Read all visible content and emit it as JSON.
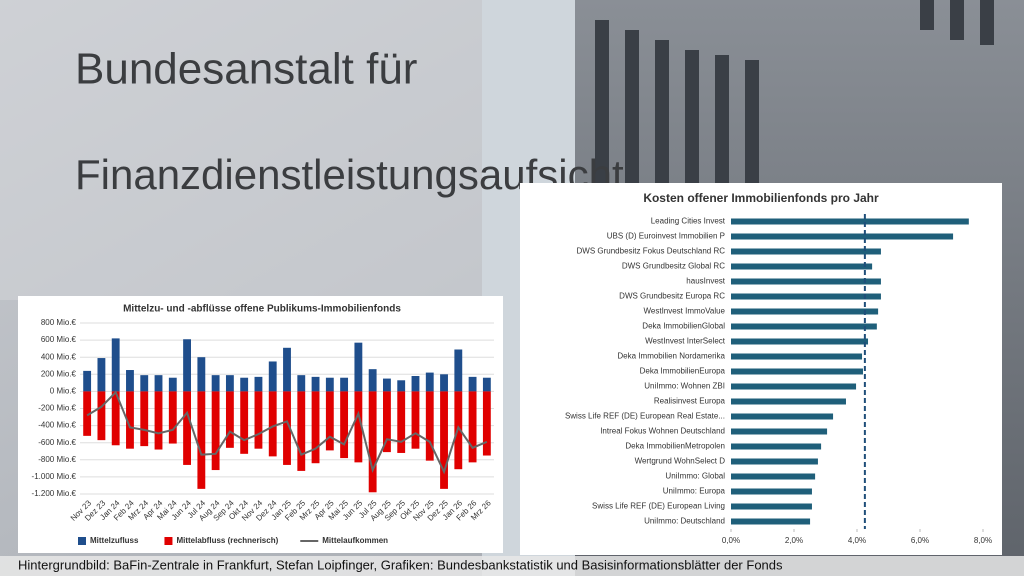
{
  "background": {
    "sign_lines": [
      "Bundesanstalt für",
      "Finanzdienstleistungsaufsicht"
    ]
  },
  "caption": "Hintergrundbild: BaFin-Zentrale in Frankfurt, Stefan Loipfinger, Grafiken: Bundesbankstatistik und Basisinformationsblätter der Fonds",
  "chart_data": [
    {
      "type": "combo",
      "title": "Mittelzu- und -abflüsse offene Publikums-Immobilienfonds",
      "categories": [
        "Nov 23",
        "Dez 23",
        "Jan 24",
        "Feb 24",
        "Mrz 24",
        "Apr 24",
        "Mai 24",
        "Jun 24",
        "Jul 24",
        "Aug 24",
        "Sep 24",
        "Okt 24",
        "Nov 24",
        "Dez 24",
        "Jan 25",
        "Feb 25",
        "Mrz 25",
        "Apr 25",
        "Mai 25",
        "Jun 25",
        "Jul 25",
        "Aug 25",
        "Sep 25",
        "Okt 25",
        "Nov 25",
        "Dez 25",
        "Jan 26",
        "Feb 26",
        "Mrz 26"
      ],
      "series": [
        {
          "name": "Mittelzufluss",
          "type": "bar",
          "color": "#1f4e8c",
          "values": [
            240,
            390,
            620,
            250,
            190,
            190,
            160,
            610,
            400,
            190,
            190,
            160,
            170,
            350,
            510,
            190,
            170,
            160,
            160,
            570,
            260,
            150,
            130,
            180,
            220,
            200,
            490,
            170,
            160
          ]
        },
        {
          "name": "Mittelabfluss (rechnerisch)",
          "type": "bar",
          "color": "#e00000",
          "values": [
            -520,
            -570,
            -630,
            -670,
            -640,
            -680,
            -610,
            -860,
            -1140,
            -920,
            -660,
            -730,
            -670,
            -760,
            -860,
            -930,
            -840,
            -690,
            -780,
            -830,
            -1180,
            -710,
            -720,
            -670,
            -810,
            -1140,
            -910,
            -830,
            -750
          ]
        },
        {
          "name": "Mittelaufkommen",
          "type": "line",
          "color": "#666666",
          "values": [
            -280,
            -180,
            -10,
            -420,
            -450,
            -490,
            -450,
            -250,
            -740,
            -730,
            -470,
            -570,
            -500,
            -410,
            -350,
            -740,
            -670,
            -530,
            -620,
            -260,
            -920,
            -560,
            -590,
            -490,
            -590,
            -940,
            -420,
            -660,
            -590
          ]
        }
      ],
      "ylim": [
        -1200,
        800
      ],
      "yticks": [
        {
          "value": 800,
          "label": "800 Mio.€"
        },
        {
          "value": 600,
          "label": "600 Mio.€"
        },
        {
          "value": 400,
          "label": "400 Mio.€"
        },
        {
          "value": 200,
          "label": "200 Mio.€"
        },
        {
          "value": 0,
          "label": "0 Mio.€"
        },
        {
          "value": -200,
          "label": "-200 Mio.€"
        },
        {
          "value": -400,
          "label": "-400 Mio.€"
        },
        {
          "value": -600,
          "label": "-600 Mio.€"
        },
        {
          "value": -800,
          "label": "-800 Mio.€"
        },
        {
          "value": -1000,
          "label": "-1.000 Mio.€"
        },
        {
          "value": -1200,
          "label": "-1.200 Mio.€"
        }
      ],
      "grid": true,
      "legend": "bottom"
    },
    {
      "type": "barh",
      "title": "Kosten offener Immobilienfonds pro Jahr",
      "categories": [
        "Leading Cities Invest",
        "UBS (D) Euroinvest Immobilien P",
        "DWS Grundbesitz Fokus Deutschland RC",
        "DWS Grundbesitz Global RC",
        "hausInvest",
        "DWS Grundbesitz Europa RC",
        "WestInvest ImmoValue",
        "Deka ImmobilienGlobal",
        "WestInvest InterSelect",
        "Deka Immobilien Nordamerika",
        "Deka ImmobilienEuropa",
        "UniImmo: Wohnen ZBI",
        "Realisinvest Europa",
        "Swiss Life REF (DE) European Real Estate...",
        "Intreal Fokus Wohnen Deutschland",
        "Deka ImmobilienMetropolen",
        "Wertgrund WohnSelect D",
        "UniImmo: Global",
        "UniImmo: Europa",
        "Swiss Life REF (DE) European Living",
        "UniImmo: Deutschland"
      ],
      "values": [
        7.55,
        7.05,
        4.76,
        4.48,
        4.76,
        4.76,
        4.67,
        4.63,
        4.35,
        4.16,
        4.19,
        3.97,
        3.65,
        3.24,
        3.05,
        2.86,
        2.76,
        2.67,
        2.57,
        2.57,
        2.51
      ],
      "color": "#1f5f7a",
      "xlim": [
        0,
        8
      ],
      "xticks": [
        {
          "value": 0,
          "label": "0,0%"
        },
        {
          "value": 2,
          "label": "2,0%"
        },
        {
          "value": 4,
          "label": "4,0%"
        },
        {
          "value": 6,
          "label": "6,0%"
        },
        {
          "value": 8,
          "label": "8,0%"
        }
      ],
      "reference_line": 4.25,
      "reference_color": "#1f4e79",
      "grid": false
    }
  ]
}
